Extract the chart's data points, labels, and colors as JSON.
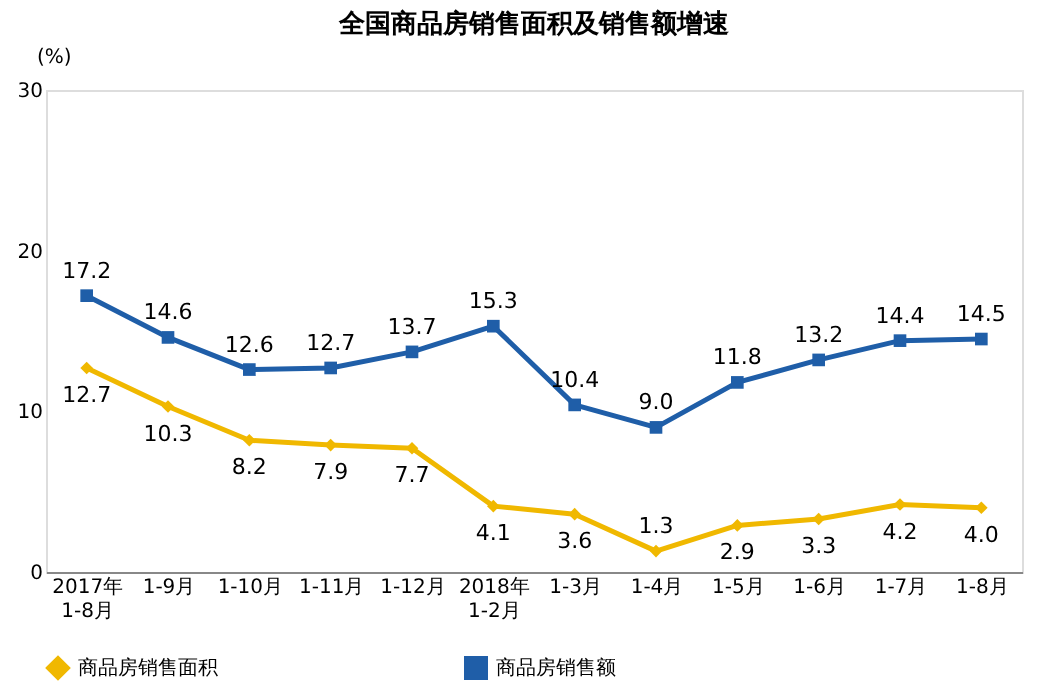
{
  "chart_data": {
    "type": "line",
    "title": "全国商品房销售面积及销售额增速",
    "ylabel": "(%)",
    "categories": [
      "2017年\n1-8月",
      "1-9月",
      "1-10月",
      "1-11月",
      "1-12月",
      "2018年\n1-2月",
      "1-3月",
      "1-4月",
      "1-5月",
      "1-6月",
      "1-7月",
      "1-8月"
    ],
    "series": [
      {
        "name": "商品房销售面积",
        "color": "#f0b800",
        "marker": "diamond",
        "values": [
          12.7,
          10.3,
          8.2,
          7.9,
          7.7,
          4.1,
          3.6,
          1.3,
          2.9,
          3.3,
          4.2,
          4.0
        ],
        "value_labels": [
          "12.7",
          "10.3",
          "8.2",
          "7.9",
          "7.7",
          "4.1",
          "3.6",
          "1.3",
          "2.9",
          "3.3",
          "4.2",
          "4.0"
        ]
      },
      {
        "name": "商品房销售额",
        "color": "#1f5ea8",
        "marker": "square",
        "values": [
          17.2,
          14.6,
          12.6,
          12.7,
          13.7,
          15.3,
          10.4,
          9.0,
          11.8,
          13.2,
          14.4,
          14.5
        ],
        "value_labels": [
          "17.2",
          "14.6",
          "12.6",
          "12.7",
          "13.7",
          "15.3",
          "10.4",
          "9.0",
          "11.8",
          "13.2",
          "14.4",
          "14.5"
        ]
      }
    ],
    "ylim": [
      0,
      30
    ],
    "yticks": [
      0,
      10,
      20,
      30
    ],
    "grid": false,
    "legend": "bottom"
  }
}
